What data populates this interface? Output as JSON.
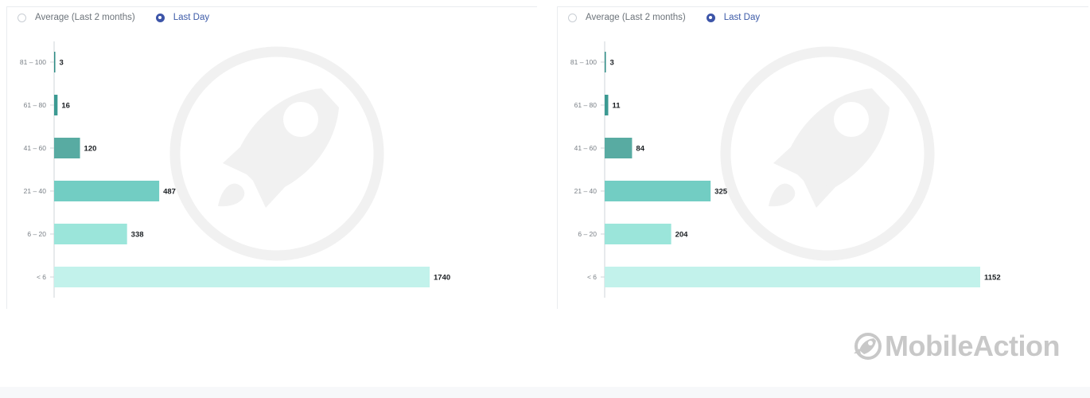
{
  "brand": {
    "name": "MobileAction",
    "logo_icon": "mobileaction-logo-icon"
  },
  "panels": [
    {
      "radio_options": [
        {
          "label": "Average (Last 2 months)",
          "checked": false
        },
        {
          "label": "Last Day",
          "checked": true
        }
      ]
    },
    {
      "radio_options": [
        {
          "label": "Average (Last 2 months)",
          "checked": false
        },
        {
          "label": "Last Day",
          "checked": true
        }
      ]
    }
  ],
  "colors": {
    "bar_81_100": "#2f8c85",
    "bar_61_80": "#3c9a92",
    "bar_41_60": "#58aba2",
    "bar_21_40": "#72cdc3",
    "bar_6_20": "#9be5da",
    "bar_lt6": "#c2f2eb",
    "radio_checked": "#3d55a8",
    "value_label": "#1b1f23",
    "axis_label": "#7a8087",
    "axis_line": "#cfd4d9",
    "watermark": "#f1f1f1"
  },
  "chart_data": [
    {
      "type": "bar",
      "orientation": "horizontal",
      "categories": [
        "81 – 100",
        "61 – 80",
        "41 – 60",
        "21 – 40",
        "6 – 20",
        "< 6"
      ],
      "values": [
        3,
        16,
        120,
        487,
        338,
        1740
      ],
      "xlim": [
        0,
        1740
      ],
      "grid": false,
      "legend": "none"
    },
    {
      "type": "bar",
      "orientation": "horizontal",
      "categories": [
        "81 – 100",
        "61 – 80",
        "41 – 60",
        "21 – 40",
        "6 – 20",
        "< 6"
      ],
      "values": [
        3,
        11,
        84,
        325,
        204,
        1152
      ],
      "xlim": [
        0,
        1152
      ],
      "grid": false,
      "legend": "none"
    }
  ]
}
